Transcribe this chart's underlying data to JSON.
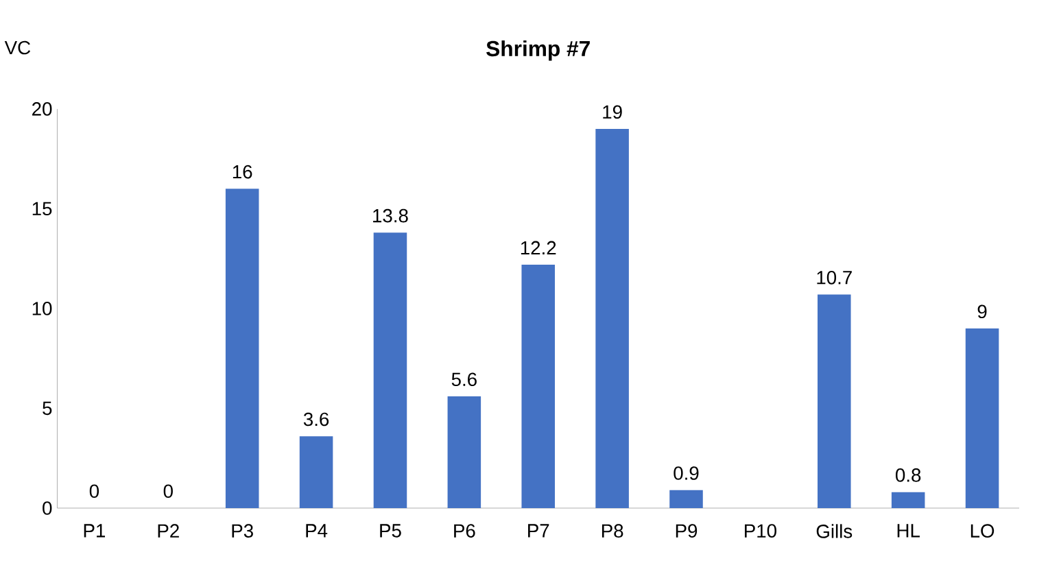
{
  "chart_data": {
    "type": "bar",
    "title": "Shrimp #7",
    "ylabel": "VC",
    "categories": [
      "P1",
      "P2",
      "P3",
      "P4",
      "P5",
      "P6",
      "P7",
      "P8",
      "P9",
      "P10",
      "Gills",
      "HL",
      "LO"
    ],
    "values": [
      0,
      0,
      16,
      3.6,
      13.8,
      5.6,
      12.2,
      19,
      0.9,
      null,
      10.7,
      0.8,
      9
    ],
    "color": "#4472c4",
    "ylim": [
      0,
      20
    ],
    "yticks": [
      0,
      5,
      10,
      15,
      20
    ],
    "data_labels": true
  }
}
